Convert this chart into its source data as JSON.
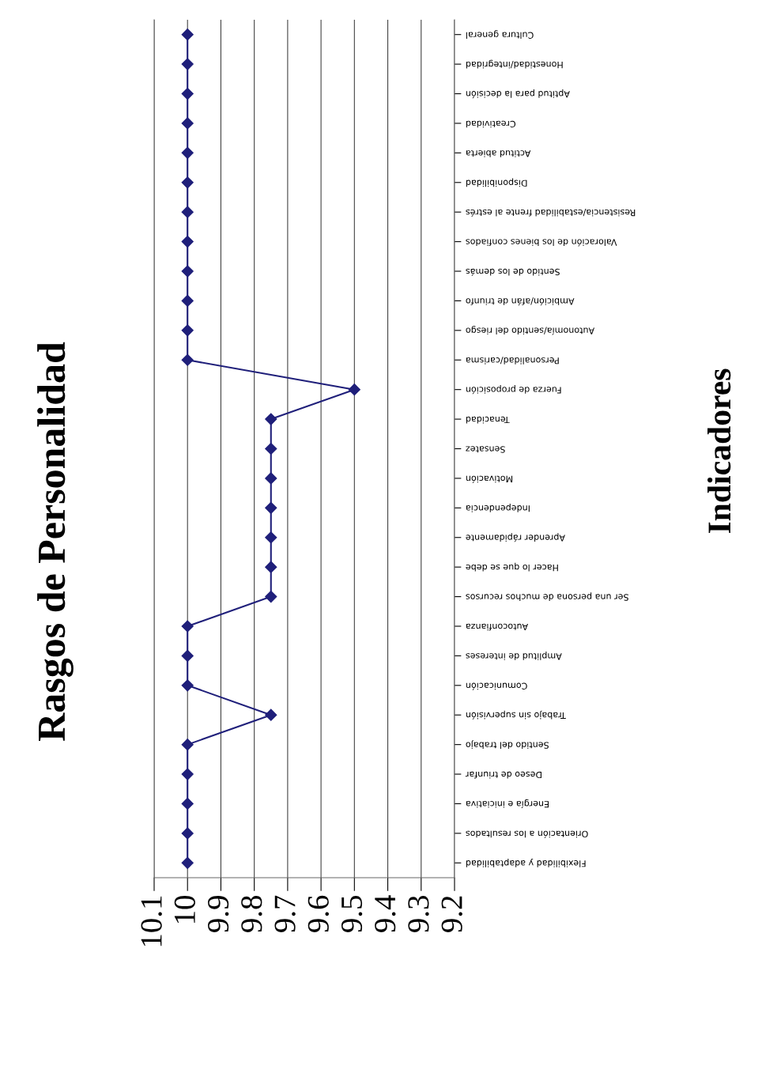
{
  "chart_data": {
    "type": "line",
    "orientation": "horizontal",
    "title": "Rasgos de Personalidad",
    "ylabel": "Indicadores",
    "categories": [
      "Cultura general",
      "Honestidad/integridad",
      "Aptitud para la decisión",
      "Creatividad",
      "Actitud abierta",
      "Disponibilidad",
      "Resistencia/estabilidad frente al estrés",
      "Valoración de los bienes confiados",
      "Sentido de los demás",
      "Ambición/afán de triunfo",
      "Autonomía/sentido del riesgo",
      "Personalidad/carisma",
      "Fuerza de proposición",
      "Tenacidad",
      "Sensatez",
      "Motivación",
      "Independencia",
      "Aprender rápidamente",
      "Hacer lo que se debe",
      "Ser una persona de muchos recursos",
      "Autoconfianza",
      "Amplitud de intereses",
      "Comunicación",
      "Trabajo sin supervisión",
      "Sentido del trabajo",
      "Deseo de triunfar",
      "Energía e iniciativa",
      "Orientación a los resultados",
      "Flexibilidad y adaptabilidad"
    ],
    "series": [
      {
        "color": "#1f1f7a",
        "values": [
          10,
          10,
          10,
          10,
          10,
          10,
          10,
          10,
          10,
          10,
          10,
          10,
          9.5,
          9.75,
          9.75,
          9.75,
          9.75,
          9.75,
          9.75,
          9.75,
          10,
          10,
          10,
          9.75,
          10,
          10,
          10,
          10,
          10
        ]
      }
    ],
    "xlim": [
      10.1,
      9.2
    ],
    "xticks": [
      {
        "value": 10.1,
        "label": "10.1"
      },
      10,
      9.9,
      9.8,
      9.7,
      9.6,
      9.5,
      9.4,
      9.3,
      9.2
    ],
    "grid": "x",
    "marker": "diamond",
    "line_style": "solid",
    "legend": false
  }
}
